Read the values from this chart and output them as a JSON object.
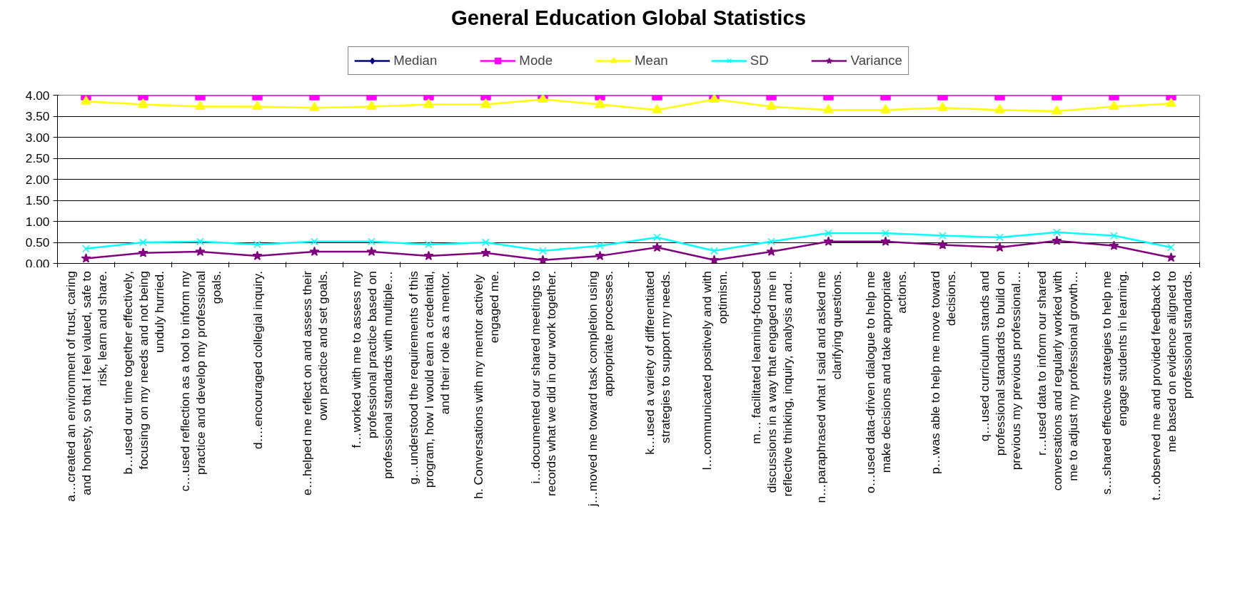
{
  "chart_data": {
    "type": "line",
    "title": "General Education Global Statistics",
    "categories": [
      "a…created an environment of trust, caring\nand honesty, so that I feel valued, safe to\nrisk, learn and share.",
      "b…used our time together effectively,\nfocusing on my needs and not being\nunduly hurried.",
      "c…used reflection as a tool to inform my\npractice and develop my professional\ngoals.",
      "d….encouraged collegial inquiry.",
      "e…helped me reflect on and assess their\nown practice and set goals.",
      "f…worked with me to assess my\nprofessional practice based on\nprofessional standards with multiple…",
      "g…understood the requirements of this\nprogram, how I would earn a credential,\nand their role as a mentor.",
      "h.  Conversations with my mentor actively\nengaged me.",
      "i…documented our shared meetings to\nrecords what we did in our work together.",
      "j…moved me toward task completion using\nappropriate processes.",
      "k…used a variety of differentiated\nstrategies to support my needs.",
      "l…communicated positively and with\noptimism.",
      "m… facilitated learning-focused\ndiscussions in a way that engaged me in\nreflective thinking, inquiry, analysis and…",
      "n…paraphrased what I said and asked me\nclarifying questions.",
      "o…used data-driven dialogue to help me\nmake decisions and take appropriate\nactions.",
      "p…was able to help me move toward\ndecisions.",
      "q…used curriculum stands and\nprofessional standards to build on\nprevious my previous professional…",
      "r…used data to inform our shared\nconversations and regularly worked with\nme to adjust my professional growth…",
      "s…shared effective strategies to help me\nengage students in learning.",
      "t…observed me and provided feedback to\nme based on evidence aligned to\nprofessional standards."
    ],
    "series": [
      {
        "name": "Median",
        "color": "#000080",
        "marker": "diamond",
        "values": [
          null,
          null,
          null,
          null,
          null,
          null,
          null,
          null,
          null,
          null,
          null,
          null,
          null,
          null,
          null,
          null,
          null,
          null,
          null,
          null
        ]
      },
      {
        "name": "Mode",
        "color": "#ff00ff",
        "marker": "square",
        "values": [
          4,
          4,
          4,
          4,
          4,
          4,
          4,
          4,
          4,
          4,
          4,
          4,
          4,
          4,
          4,
          4,
          4,
          4,
          4,
          4
        ]
      },
      {
        "name": "Mean",
        "color": "#ffff00",
        "marker": "triangle",
        "values": [
          3.85,
          3.78,
          3.73,
          3.73,
          3.7,
          3.73,
          3.78,
          3.78,
          3.9,
          3.78,
          3.65,
          3.9,
          3.73,
          3.65,
          3.65,
          3.7,
          3.65,
          3.62,
          3.73,
          3.8
        ]
      },
      {
        "name": "SD",
        "color": "#00ffff",
        "marker": "cross",
        "values": [
          0.35,
          0.5,
          0.52,
          0.45,
          0.52,
          0.52,
          0.45,
          0.5,
          0.3,
          0.42,
          0.62,
          0.3,
          0.52,
          0.72,
          0.72,
          0.66,
          0.62,
          0.74,
          0.66,
          0.38
        ]
      },
      {
        "name": "Variance",
        "color": "#800080",
        "marker": "star",
        "values": [
          0.12,
          0.25,
          0.28,
          0.18,
          0.28,
          0.28,
          0.18,
          0.25,
          0.08,
          0.18,
          0.38,
          0.08,
          0.28,
          0.52,
          0.52,
          0.44,
          0.38,
          0.54,
          0.42,
          0.14
        ]
      }
    ],
    "ylim": [
      0,
      4
    ],
    "yticks": [
      {
        "value": 0,
        "label": "0.00"
      },
      {
        "value": 0.5,
        "label": "0.50"
      },
      {
        "value": 1,
        "label": "1.00"
      },
      {
        "value": 1.5,
        "label": "1.50"
      },
      {
        "value": 2,
        "label": "2.00"
      },
      {
        "value": 2.5,
        "label": "2.50"
      },
      {
        "value": 3,
        "label": "3.00"
      },
      {
        "value": 3.5,
        "label": "3.50"
      },
      {
        "value": 4,
        "label": "4.00"
      }
    ],
    "grid": "y",
    "legend": "top"
  }
}
